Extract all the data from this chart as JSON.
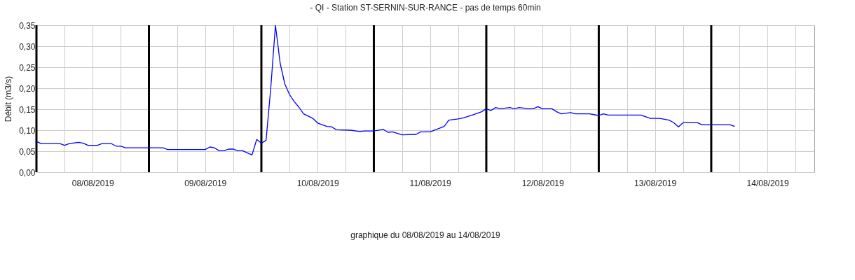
{
  "chart_data": {
    "type": "line",
    "title": "- QI - Station ST-SERNIN-SUR-RANCE - pas de temps 60min",
    "annotations": [
      "graphique du 08/08/2019 au 14/08/2019"
    ],
    "ylabel": "Débit (m3/s)",
    "x": [
      "2019-08-08T00:00",
      "2019-08-08T01:00",
      "2019-08-08T05:00",
      "2019-08-08T06:00",
      "2019-08-08T07:00",
      "2019-08-08T09:00",
      "2019-08-08T10:00",
      "2019-08-08T11:00",
      "2019-08-08T13:00",
      "2019-08-08T14:00",
      "2019-08-08T16:00",
      "2019-08-08T17:00",
      "2019-08-08T18:00",
      "2019-08-08T19:00",
      "2019-08-09T03:00",
      "2019-08-09T04:00",
      "2019-08-09T12:00",
      "2019-08-09T13:00",
      "2019-08-09T14:00",
      "2019-08-09T15:00",
      "2019-08-09T16:00",
      "2019-08-09T17:00",
      "2019-08-09T18:00",
      "2019-08-09T19:00",
      "2019-08-09T20:00",
      "2019-08-09T22:00",
      "2019-08-09T23:00",
      "2019-08-10T00:00",
      "2019-08-10T01:00",
      "2019-08-10T02:00",
      "2019-08-10T03:00",
      "2019-08-10T04:00",
      "2019-08-10T05:00",
      "2019-08-10T06:00",
      "2019-08-10T07:00",
      "2019-08-10T08:00",
      "2019-08-10T09:00",
      "2019-08-10T11:00",
      "2019-08-10T12:00",
      "2019-08-10T14:00",
      "2019-08-10T15:00",
      "2019-08-10T16:00",
      "2019-08-10T19:00",
      "2019-08-10T21:00",
      "2019-08-10T22:00",
      "2019-08-11T00:00",
      "2019-08-11T02:00",
      "2019-08-11T03:00",
      "2019-08-11T04:00",
      "2019-08-11T06:00",
      "2019-08-11T09:00",
      "2019-08-11T10:00",
      "2019-08-11T12:00",
      "2019-08-11T15:00",
      "2019-08-11T16:00",
      "2019-08-11T18:00",
      "2019-08-11T19:00",
      "2019-08-11T21:00",
      "2019-08-11T23:00",
      "2019-08-12T00:00",
      "2019-08-12T01:00",
      "2019-08-12T02:00",
      "2019-08-12T03:00",
      "2019-08-12T05:00",
      "2019-08-12T06:00",
      "2019-08-12T07:00",
      "2019-08-12T09:00",
      "2019-08-12T10:00",
      "2019-08-12T11:00",
      "2019-08-12T12:00",
      "2019-08-12T14:00",
      "2019-08-12T15:00",
      "2019-08-12T16:00",
      "2019-08-12T18:00",
      "2019-08-12T19:00",
      "2019-08-12T22:00",
      "2019-08-13T00:00",
      "2019-08-13T01:00",
      "2019-08-13T02:00",
      "2019-08-13T09:00",
      "2019-08-13T11:00",
      "2019-08-13T13:00",
      "2019-08-13T15:00",
      "2019-08-13T16:00",
      "2019-08-13T17:00",
      "2019-08-13T18:00",
      "2019-08-13T21:00",
      "2019-08-13T22:00",
      "2019-08-14T04:00",
      "2019-08-14T05:00"
    ],
    "series": [
      {
        "color": "#0000ff",
        "values": [
          0.073,
          0.068,
          0.068,
          0.064,
          0.068,
          0.071,
          0.069,
          0.064,
          0.064,
          0.068,
          0.068,
          0.062,
          0.062,
          0.058,
          0.058,
          0.054,
          0.054,
          0.06,
          0.058,
          0.051,
          0.051,
          0.055,
          0.055,
          0.051,
          0.051,
          0.041,
          0.078,
          0.069,
          0.076,
          0.2,
          0.35,
          0.26,
          0.21,
          0.185,
          0.168,
          0.155,
          0.139,
          0.128,
          0.117,
          0.109,
          0.108,
          0.101,
          0.1,
          0.097,
          0.098,
          0.098,
          0.102,
          0.095,
          0.096,
          0.089,
          0.09,
          0.096,
          0.096,
          0.109,
          0.124,
          0.127,
          0.129,
          0.136,
          0.144,
          0.151,
          0.147,
          0.154,
          0.151,
          0.154,
          0.151,
          0.154,
          0.151,
          0.151,
          0.156,
          0.151,
          0.151,
          0.144,
          0.139,
          0.142,
          0.139,
          0.139,
          0.135,
          0.139,
          0.136,
          0.136,
          0.128,
          0.128,
          0.124,
          0.118,
          0.108,
          0.118,
          0.118,
          0.113,
          0.113,
          0.109
        ]
      }
    ],
    "xlim": [
      "2019-08-08T00:00",
      "2019-08-14T22:00"
    ],
    "xticks": [
      {
        "value": "2019-08-08T06:00",
        "label": null
      },
      {
        "value": "2019-08-08T12:00",
        "label": "08/08/2019"
      },
      {
        "value": "2019-08-08T18:00",
        "label": null
      },
      {
        "value": "2019-08-09T06:00",
        "label": null
      },
      {
        "value": "2019-08-09T12:00",
        "label": "09/08/2019"
      },
      {
        "value": "2019-08-09T18:00",
        "label": null
      },
      {
        "value": "2019-08-10T06:00",
        "label": null
      },
      {
        "value": "2019-08-10T12:00",
        "label": "10/08/2019"
      },
      {
        "value": "2019-08-10T18:00",
        "label": null
      },
      {
        "value": "2019-08-11T06:00",
        "label": null
      },
      {
        "value": "2019-08-11T12:00",
        "label": "11/08/2019"
      },
      {
        "value": "2019-08-11T18:00",
        "label": null
      },
      {
        "value": "2019-08-12T06:00",
        "label": null
      },
      {
        "value": "2019-08-12T12:00",
        "label": "12/08/2019"
      },
      {
        "value": "2019-08-12T18:00",
        "label": null
      },
      {
        "value": "2019-08-13T06:00",
        "label": null
      },
      {
        "value": "2019-08-13T12:00",
        "label": "13/08/2019"
      },
      {
        "value": "2019-08-13T18:00",
        "label": null
      },
      {
        "value": "2019-08-14T06:00",
        "label": null
      },
      {
        "value": "2019-08-14T12:00",
        "label": "14/08/2019"
      },
      {
        "value": "2019-08-14T18:00",
        "label": null
      }
    ],
    "ylim": [
      0,
      0.35
    ],
    "yticks": [
      {
        "value": 0,
        "label": "0,00"
      },
      {
        "value": 0.05,
        "label": "0,05"
      },
      {
        "value": 0.1,
        "label": "0,10"
      },
      {
        "value": 0.15,
        "label": "0,15"
      },
      {
        "value": 0.2,
        "label": "0,20"
      },
      {
        "value": 0.25,
        "label": "0,25"
      },
      {
        "value": 0.3,
        "label": "0,30"
      },
      {
        "value": 0.35,
        "label": "0,35"
      }
    ],
    "ref_lines": [
      {
        "axis": "x",
        "value": "2019-08-08T00:00",
        "color": "#000000"
      },
      {
        "axis": "x",
        "value": "2019-08-09T00:00",
        "color": "#000000"
      },
      {
        "axis": "x",
        "value": "2019-08-10T00:00",
        "color": "#000000"
      },
      {
        "axis": "x",
        "value": "2019-08-11T00:00",
        "color": "#000000"
      },
      {
        "axis": "x",
        "value": "2019-08-12T00:00",
        "color": "#000000"
      },
      {
        "axis": "x",
        "value": "2019-08-13T00:00",
        "color": "#000000"
      },
      {
        "axis": "x",
        "value": "2019-08-14T00:00",
        "color": "#000000"
      }
    ],
    "grid": true,
    "legend": false,
    "marker": "none",
    "line_style": "solid"
  }
}
